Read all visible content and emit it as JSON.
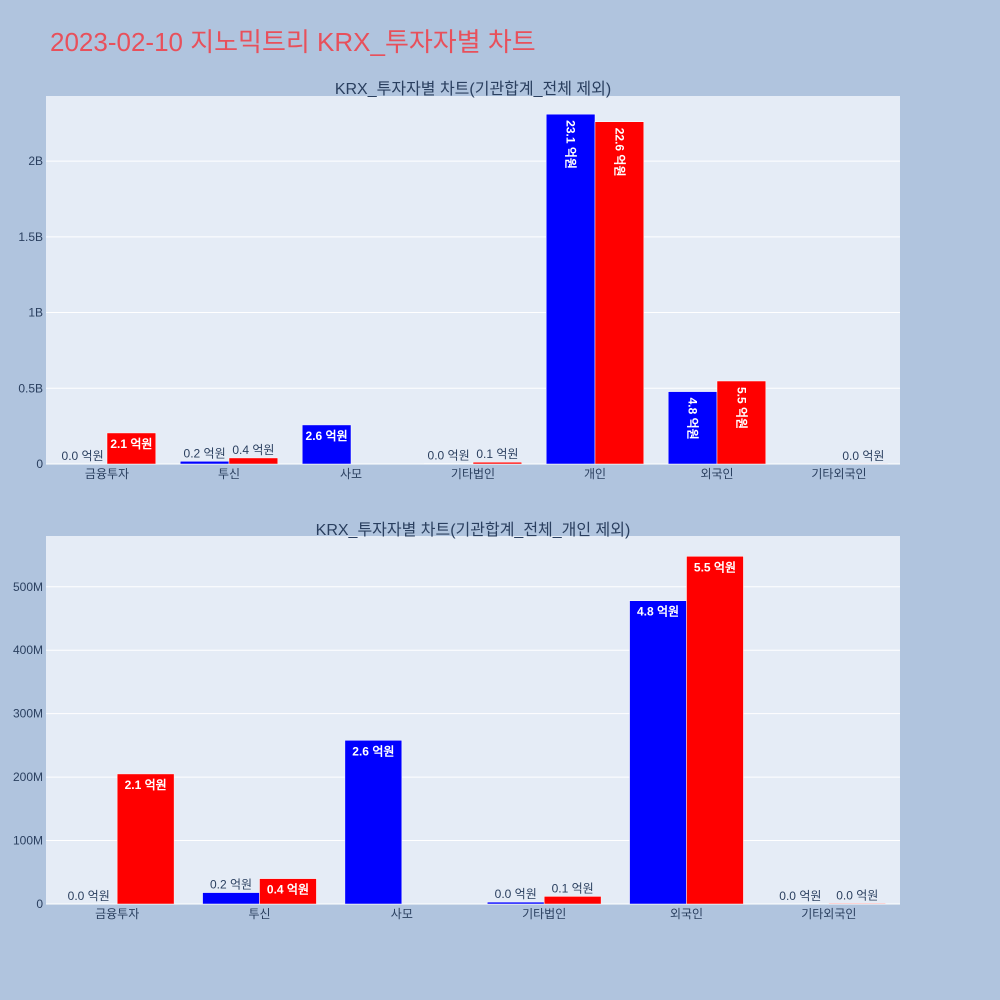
{
  "title": "2023-02-10 지노믹트리 KRX_투자자별 차트",
  "colors": {
    "series_a": "#0000ff",
    "series_b": "#ff0000",
    "background": "#b0c4de",
    "plot_bg": "#e5ecf6"
  },
  "chart_data": [
    {
      "type": "bar",
      "title": "KRX_투자자별 차트(기관합계_전체 제외)",
      "categories": [
        "금융투자",
        "투신",
        "사모",
        "기타법인",
        "개인",
        "외국인",
        "기타외국인"
      ],
      "series": [
        {
          "values": [
            0,
            18000000,
            258000000,
            3000000,
            2310000000,
            478000000,
            0
          ],
          "labels": [
            "0.0 억원",
            "0.2 억원",
            "2.6 억원",
            "0.0 억원",
            "23.1 억원",
            "4.8 억원",
            ""
          ]
        },
        {
          "values": [
            205000000,
            40000000,
            0,
            12000000,
            2260000000,
            548000000,
            1000000
          ],
          "labels": [
            "2.1 억원",
            "0.4 억원",
            "",
            "0.1 억원",
            "22.6 억원",
            "5.5 억원",
            "0.0 억원"
          ]
        }
      ],
      "yticks": [
        0,
        500000000,
        1000000000,
        1500000000,
        2000000000
      ],
      "yticklabels": [
        "0",
        "0.5B",
        "1B",
        "1.5B",
        "2B"
      ],
      "ylim": [
        0,
        2430000000
      ],
      "grid": true
    },
    {
      "type": "bar",
      "title": "KRX_투자자별 차트(기관합계_전체_개인 제외)",
      "categories": [
        "금융투자",
        "투신",
        "사모",
        "기타법인",
        "외국인",
        "기타외국인"
      ],
      "series": [
        {
          "values": [
            0,
            18000000,
            258000000,
            3000000,
            478000000,
            0
          ],
          "labels": [
            "0.0 억원",
            "0.2 억원",
            "2.6 억원",
            "0.0 억원",
            "4.8 억원",
            "0.0 억원"
          ]
        },
        {
          "values": [
            205000000,
            40000000,
            0,
            12000000,
            548000000,
            1000000
          ],
          "labels": [
            "2.1 억원",
            "0.4 억원",
            "",
            "0.1 억원",
            "5.5 억원",
            "0.0 억원"
          ]
        }
      ],
      "yticks": [
        0,
        100000000,
        200000000,
        300000000,
        400000000,
        500000000
      ],
      "yticklabels": [
        "0",
        "100M",
        "200M",
        "300M",
        "400M",
        "500M"
      ],
      "ylim": [
        0,
        580000000
      ],
      "grid": true
    }
  ]
}
